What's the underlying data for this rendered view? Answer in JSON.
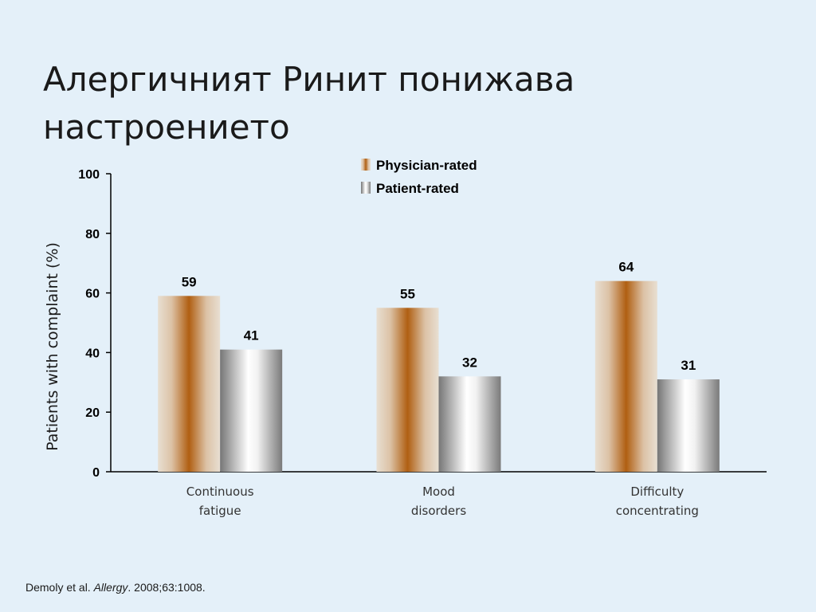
{
  "slide": {
    "title_line1": "Алергичният Ринит понижава",
    "title_line2": "настроението"
  },
  "citation": {
    "authors": "Demoly et al.",
    "journal": "Allergy",
    "details": ". 2008;63:1008."
  },
  "chart_data": {
    "type": "bar",
    "ylabel": "Patients with complaint (%)",
    "ylim": [
      0,
      100
    ],
    "yticks": [
      0,
      20,
      40,
      60,
      80,
      100
    ],
    "grid": false,
    "legend_position": "top-center",
    "categories": [
      [
        "Continuous",
        "fatigue"
      ],
      [
        "Mood",
        "disorders"
      ],
      [
        "Difficulty",
        "concentrating"
      ]
    ],
    "series": [
      {
        "name": "Physician-rated",
        "values": [
          59,
          55,
          64
        ],
        "color": "#b5651d"
      },
      {
        "name": "Patient-rated",
        "values": [
          41,
          32,
          31
        ],
        "color": "#8a8a8a"
      }
    ]
  }
}
